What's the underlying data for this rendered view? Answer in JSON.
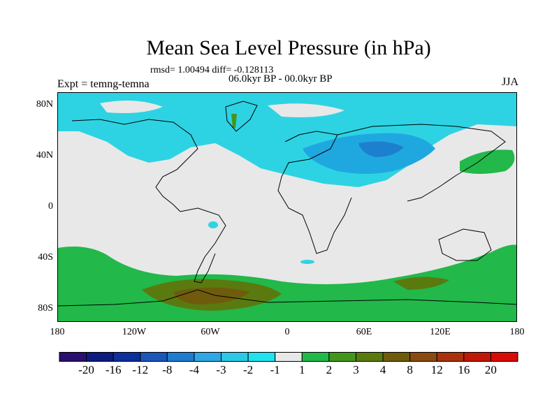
{
  "title": "Mean Sea Level Pressure (in hPa)",
  "stats": "rmsd= 1.00494 diff= -0.128113",
  "period": "06.0kyr BP - 00.0kyr BP",
  "experiment": "Expt = temng-temna",
  "season": "JJA",
  "y_axis_labels": [
    "80N",
    "40N",
    "0",
    "40S",
    "80S"
  ],
  "x_axis_labels": [
    "180",
    "120W",
    "60W",
    "0",
    "60E",
    "120E",
    "180"
  ],
  "colorbar": {
    "colors": [
      "#2a0f6e",
      "#0d1a7e",
      "#0c2f9c",
      "#1b56b8",
      "#1f7bd0",
      "#2ea7e4",
      "#2dc8e6",
      "#22e2ee",
      "#e8e8e8",
      "#22b84a",
      "#43951e",
      "#5a7a10",
      "#6e5c0c",
      "#8a4a12",
      "#a8320e",
      "#c01808",
      "#d80c06"
    ],
    "labels": [
      "-20",
      "-16",
      "-12",
      "-8",
      "-4",
      "-3",
      "-2",
      "-1",
      "1",
      "2",
      "3",
      "4",
      "8",
      "12",
      "16",
      "20"
    ]
  }
}
